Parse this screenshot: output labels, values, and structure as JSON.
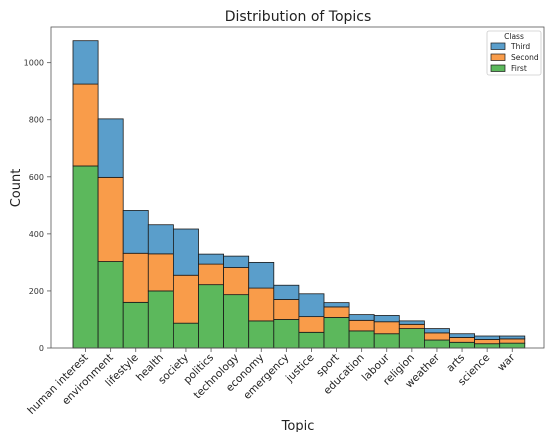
{
  "chart_data": {
    "type": "bar",
    "stacked": true,
    "title": "Distribution of Topics",
    "xlabel": "Topic",
    "ylabel": "Count",
    "ylim": [
      0,
      1125
    ],
    "yticks": [
      0,
      200,
      400,
      600,
      800,
      1000
    ],
    "categories": [
      "human interest",
      "environment",
      "lifestyle",
      "health",
      "society",
      "politics",
      "technology",
      "economy",
      "emergency",
      "justice",
      "sport",
      "education",
      "labour",
      "religion",
      "weather",
      "arts",
      "science",
      "war"
    ],
    "series": [
      {
        "name": "First",
        "color": "#5cb85c",
        "values": [
          638,
          303,
          160,
          200,
          87,
          222,
          187,
          95,
          100,
          55,
          107,
          60,
          50,
          68,
          28,
          20,
          15,
          17
        ]
      },
      {
        "name": "Second",
        "color": "#f99c4a",
        "values": [
          287,
          295,
          172,
          130,
          168,
          72,
          95,
          115,
          70,
          55,
          37,
          37,
          42,
          15,
          25,
          17,
          15,
          15
        ]
      },
      {
        "name": "Third",
        "color": "#5a9ecb",
        "values": [
          152,
          205,
          150,
          102,
          162,
          35,
          40,
          90,
          50,
          80,
          15,
          20,
          22,
          12,
          15,
          13,
          12,
          10
        ]
      }
    ],
    "legend": {
      "title": "Class",
      "position": "top-right",
      "order": [
        "Third",
        "Second",
        "First"
      ]
    },
    "grid": false
  }
}
